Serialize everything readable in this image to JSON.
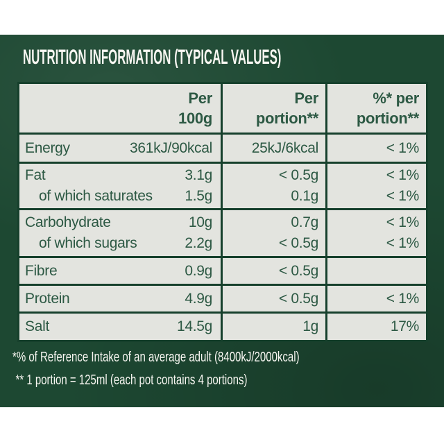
{
  "title": "NUTRITION INFORMATION (TYPICAL VALUES)",
  "colors": {
    "panel_green": "#1d4832",
    "table_border_green": "#16402c",
    "cell_background": "#e3e4df",
    "table_text_green": "#2d5944",
    "light_text": "#f7f6f1",
    "page_background": "#ffffff"
  },
  "table": {
    "header": {
      "per_100g": [
        "Per",
        "100g"
      ],
      "per_portion": [
        "Per",
        "portion**"
      ],
      "pct_per_portion": [
        "%* per",
        "portion**"
      ]
    },
    "rows": [
      {
        "lines": [
          {
            "label": "Energy",
            "per100g": "361kJ/90kcal",
            "per_portion": "25kJ/6kcal",
            "pct": "< 1%"
          }
        ]
      },
      {
        "lines": [
          {
            "label": "Fat",
            "per100g": "3.1g",
            "per_portion": "< 0.5g",
            "pct": "< 1%"
          },
          {
            "label": "of which saturates",
            "per100g": "1.5g",
            "per_portion": "0.1g",
            "pct": "< 1%"
          }
        ]
      },
      {
        "lines": [
          {
            "label": "Carbohydrate",
            "per100g": "10g",
            "per_portion": "0.7g",
            "pct": "< 1%"
          },
          {
            "label": "of which sugars",
            "per100g": "2.2g",
            "per_portion": "< 0.5g",
            "pct": "< 1%"
          }
        ]
      },
      {
        "lines": [
          {
            "label": "Fibre",
            "per100g": "0.9g",
            "per_portion": "< 0.5g",
            "pct": ""
          }
        ]
      },
      {
        "lines": [
          {
            "label": "Protein",
            "per100g": "4.9g",
            "per_portion": "< 0.5g",
            "pct": "< 1%"
          }
        ]
      },
      {
        "lines": [
          {
            "label": "Salt",
            "per100g": "14.5g",
            "per_portion": "1g",
            "pct": "17%"
          }
        ]
      }
    ]
  },
  "footnotes": [
    "*% of Reference Intake of an average adult (8400kJ/2000kcal)",
    "** 1 portion = 125ml (each pot contains 4 portions)"
  ]
}
